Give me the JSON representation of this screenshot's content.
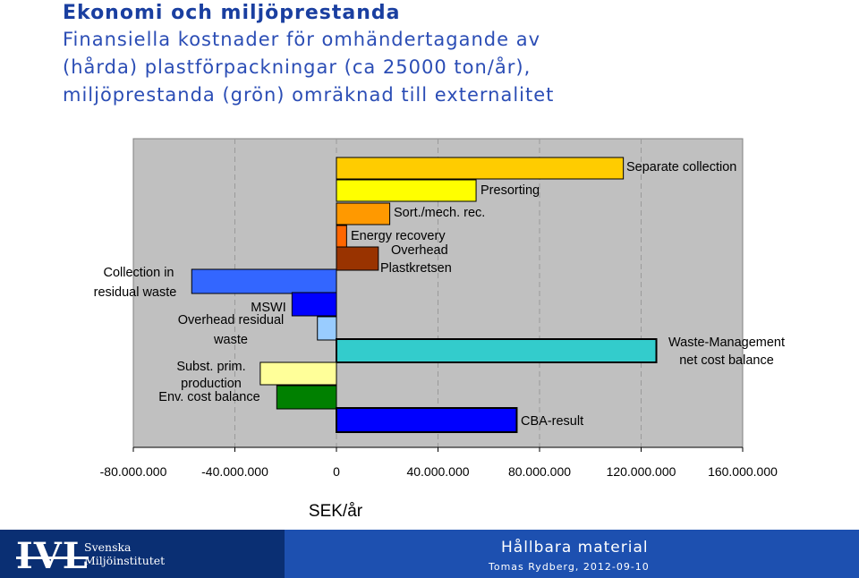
{
  "header": {
    "title": "Ekonomi och miljöprestanda",
    "subtitle_lines": [
      "Finansiella kostnader för omhändertagande av",
      "(hårda) plastförpackningar (ca 25000 ton/år),",
      "miljöprestanda (grön) omräknad till externalitet"
    ]
  },
  "chart_data": {
    "type": "bar",
    "orientation": "horizontal-waterfall",
    "xlabel": "SEK/år",
    "xlim": [
      -80000000,
      160000000
    ],
    "x_ticks": [
      -80000000,
      -40000000,
      0,
      40000000,
      80000000,
      120000000,
      160000000
    ],
    "x_tick_labels": [
      "-80.000.000",
      "-40.000.000",
      "0",
      "40.000.000",
      "80.000.000",
      "120.000.000",
      "160.000.000"
    ],
    "grid": "vertical dashed",
    "plot_background": "#c0c0c0",
    "bars": [
      {
        "label": "Separate collection",
        "start": 0,
        "end": 113000000,
        "color": "#ffcc00",
        "label_side": "right"
      },
      {
        "label": "Presorting",
        "start": 0,
        "end": 55000000,
        "color": "#ffff00",
        "label_side": "right"
      },
      {
        "label": "Sort./mech. rec.",
        "start": 0,
        "end": 21000000,
        "color": "#ff9900",
        "label_side": "right"
      },
      {
        "label": "Energy recovery",
        "start": 0,
        "end": 4000000,
        "color": "#ff6600",
        "label_side": "right"
      },
      {
        "label": "Overhead Plastkretsen",
        "start": 0,
        "end": 16500000,
        "color": "#993300",
        "label_side": "right"
      },
      {
        "label": "Collection in residual waste",
        "start": -57000000,
        "end": 0,
        "color": "#3366ff",
        "label_side": "left"
      },
      {
        "label": "MSWI Overhead residual waste",
        "start": -17500000,
        "end": 0,
        "color": "#0000ff",
        "label_side": "left"
      },
      {
        "label": "",
        "start": -7500000,
        "end": 0,
        "color": "#99ccff",
        "label_side": "none"
      },
      {
        "label": "Waste-Management net cost balance",
        "start": 0,
        "end": 126000000,
        "color": "#33cccc",
        "label_side": "right"
      },
      {
        "label": "Subst. prim. production",
        "start": -30000000,
        "end": 0,
        "color": "#ffff99",
        "label_side": "left"
      },
      {
        "label": "Env. cost balance",
        "start": -23500000,
        "end": 0,
        "color": "#008000",
        "label_side": "left"
      },
      {
        "label": "CBA-result",
        "start": 0,
        "end": 71000000,
        "color": "#0000ff",
        "label_side": "right"
      }
    ]
  },
  "footer": {
    "logo_text": "IVL",
    "logo_name_1": "Svenska",
    "logo_name_2": "Miljöinstitutet",
    "title": "Hållbara material",
    "author": "Tomas Rydberg, 2012-09-10"
  }
}
